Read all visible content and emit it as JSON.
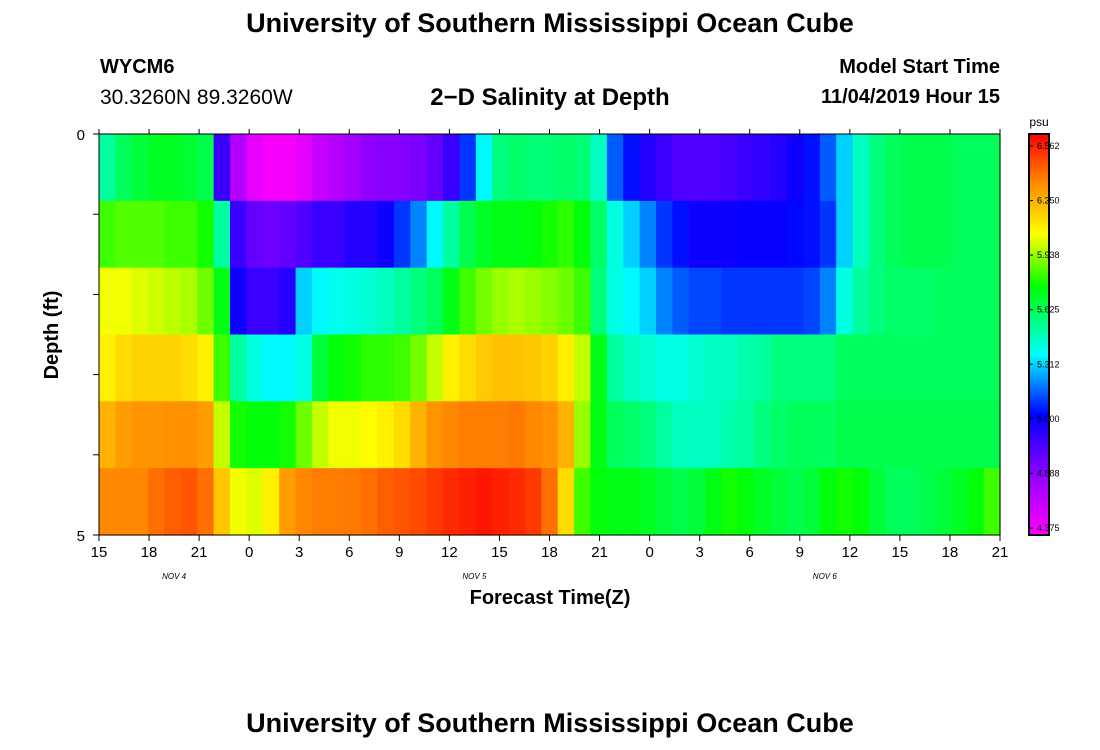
{
  "header": {
    "title": "University of Southern Mississippi Ocean Cube",
    "station_id": "WYCM6",
    "station_location": "30.3260N 89.3260W",
    "plot_title": "2−D Salinity at Depth",
    "model_start_label": "Model Start Time",
    "model_start_value": "11/04/2019 Hour 15"
  },
  "footer": {
    "title": "University of Southern Mississippi Ocean Cube"
  },
  "chart_data": {
    "type": "heatmap",
    "title": "2−D Salinity at Depth",
    "xlabel": "Forecast Time(Z)",
    "ylabel": "Depth (ft)",
    "x_tick_labels": [
      "15",
      "18",
      "21",
      "0",
      "3",
      "6",
      "9",
      "12",
      "15",
      "18",
      "21",
      "0",
      "3",
      "6",
      "9",
      "12",
      "15",
      "18",
      "21"
    ],
    "x_date_labels": [
      {
        "label": "NOV  4",
        "after_tick": 1
      },
      {
        "label": "NOV  5",
        "after_tick": 7
      },
      {
        "label": "NOV  6",
        "after_tick": 14
      }
    ],
    "y_tick_labels": [
      "0",
      "5"
    ],
    "ylim": [
      0,
      5
    ],
    "colorbar": {
      "unit": "psu",
      "tick_labels": [
        "6.562",
        "6.250",
        "5.938",
        "5.625",
        "5.312",
        "5.000",
        "4.688",
        "4.375"
      ],
      "min": 4.375,
      "max": 6.562
    },
    "time_hours": [
      0,
      1,
      2,
      3,
      4,
      5,
      6,
      7,
      8,
      9,
      10,
      11,
      12,
      13,
      14,
      15,
      16,
      17,
      18,
      19,
      20,
      21,
      22,
      23,
      24,
      25,
      26,
      27,
      28,
      29,
      30,
      31,
      32,
      33,
      34,
      35,
      36,
      37,
      38,
      39,
      40,
      41,
      42,
      43,
      44,
      45,
      46,
      47,
      48,
      49,
      50,
      51,
      52,
      53,
      54
    ],
    "rows": [
      {
        "depth_band": 0,
        "values": [
          5.5,
          5.6,
          5.65,
          5.68,
          5.68,
          5.66,
          5.62,
          4.9,
          4.6,
          4.45,
          4.4,
          4.4,
          4.45,
          4.55,
          4.6,
          4.65,
          4.7,
          4.72,
          4.73,
          4.75,
          4.8,
          4.9,
          5.1,
          5.35,
          5.55,
          5.58,
          5.56,
          5.56,
          5.58,
          5.56,
          5.45,
          5.15,
          5.05,
          4.95,
          4.9,
          4.85,
          4.85,
          4.85,
          4.87,
          4.9,
          4.92,
          4.95,
          5.0,
          5.05,
          5.15,
          5.3,
          5.45,
          5.55,
          5.6,
          5.62,
          5.62,
          5.62,
          5.6,
          5.6,
          5.6
        ]
      },
      {
        "depth_band": 1,
        "values": [
          5.8,
          5.82,
          5.82,
          5.82,
          5.8,
          5.8,
          5.75,
          5.5,
          4.9,
          4.8,
          4.78,
          4.8,
          4.85,
          4.9,
          4.9,
          4.95,
          4.95,
          5.0,
          5.1,
          5.2,
          5.35,
          5.5,
          5.62,
          5.68,
          5.7,
          5.7,
          5.72,
          5.75,
          5.78,
          5.72,
          5.58,
          5.4,
          5.3,
          5.2,
          5.1,
          5.05,
          5.0,
          5.0,
          5.0,
          5.02,
          5.02,
          5.02,
          5.04,
          5.05,
          5.1,
          5.3,
          5.45,
          5.55,
          5.6,
          5.62,
          5.62,
          5.62,
          5.6,
          5.6,
          5.6
        ]
      },
      {
        "depth_band": 2,
        "values": [
          6.0,
          6.0,
          5.98,
          5.96,
          5.94,
          5.92,
          5.85,
          5.7,
          5.0,
          4.9,
          4.9,
          4.95,
          5.3,
          5.35,
          5.38,
          5.4,
          5.42,
          5.46,
          5.5,
          5.55,
          5.6,
          5.7,
          5.8,
          5.86,
          5.9,
          5.92,
          5.9,
          5.88,
          5.85,
          5.8,
          5.55,
          5.4,
          5.35,
          5.3,
          5.2,
          5.15,
          5.12,
          5.12,
          5.1,
          5.1,
          5.1,
          5.1,
          5.1,
          5.12,
          5.2,
          5.4,
          5.5,
          5.55,
          5.58,
          5.58,
          5.58,
          5.6,
          5.6,
          5.6,
          5.6
        ]
      },
      {
        "depth_band": 3,
        "values": [
          6.05,
          6.1,
          6.12,
          6.12,
          6.12,
          6.1,
          6.05,
          5.8,
          5.5,
          5.4,
          5.35,
          5.35,
          5.4,
          5.65,
          5.72,
          5.75,
          5.78,
          5.78,
          5.8,
          5.86,
          5.95,
          6.05,
          6.1,
          6.14,
          6.16,
          6.16,
          6.15,
          6.12,
          6.05,
          5.95,
          5.7,
          5.5,
          5.45,
          5.42,
          5.4,
          5.4,
          5.42,
          5.45,
          5.45,
          5.48,
          5.5,
          5.55,
          5.55,
          5.55,
          5.55,
          5.6,
          5.6,
          5.6,
          5.6,
          5.6,
          5.6,
          5.6,
          5.6,
          5.6,
          5.6
        ]
      },
      {
        "depth_band": 4,
        "values": [
          6.2,
          6.25,
          6.27,
          6.27,
          6.28,
          6.28,
          6.25,
          5.95,
          5.75,
          5.72,
          5.72,
          5.75,
          5.85,
          5.95,
          6.0,
          6.0,
          6.02,
          6.05,
          6.1,
          6.2,
          6.27,
          6.3,
          6.32,
          6.32,
          6.32,
          6.33,
          6.3,
          6.28,
          6.2,
          5.9,
          5.7,
          5.6,
          5.58,
          5.55,
          5.5,
          5.45,
          5.45,
          5.45,
          5.48,
          5.5,
          5.55,
          5.58,
          5.6,
          5.6,
          5.6,
          5.62,
          5.62,
          5.62,
          5.62,
          5.62,
          5.62,
          5.62,
          5.62,
          5.62,
          5.62
        ]
      },
      {
        "depth_band": 5,
        "values": [
          6.3,
          6.3,
          6.3,
          6.35,
          6.38,
          6.4,
          6.35,
          6.15,
          6.0,
          5.98,
          6.05,
          6.25,
          6.3,
          6.32,
          6.32,
          6.33,
          6.35,
          6.38,
          6.4,
          6.42,
          6.45,
          6.48,
          6.5,
          6.52,
          6.5,
          6.48,
          6.45,
          6.35,
          6.1,
          5.8,
          5.72,
          5.7,
          5.7,
          5.68,
          5.65,
          5.62,
          5.65,
          5.7,
          5.75,
          5.72,
          5.68,
          5.65,
          5.62,
          5.65,
          5.72,
          5.75,
          5.72,
          5.65,
          5.6,
          5.6,
          5.62,
          5.65,
          5.68,
          5.72,
          5.8
        ]
      }
    ]
  }
}
